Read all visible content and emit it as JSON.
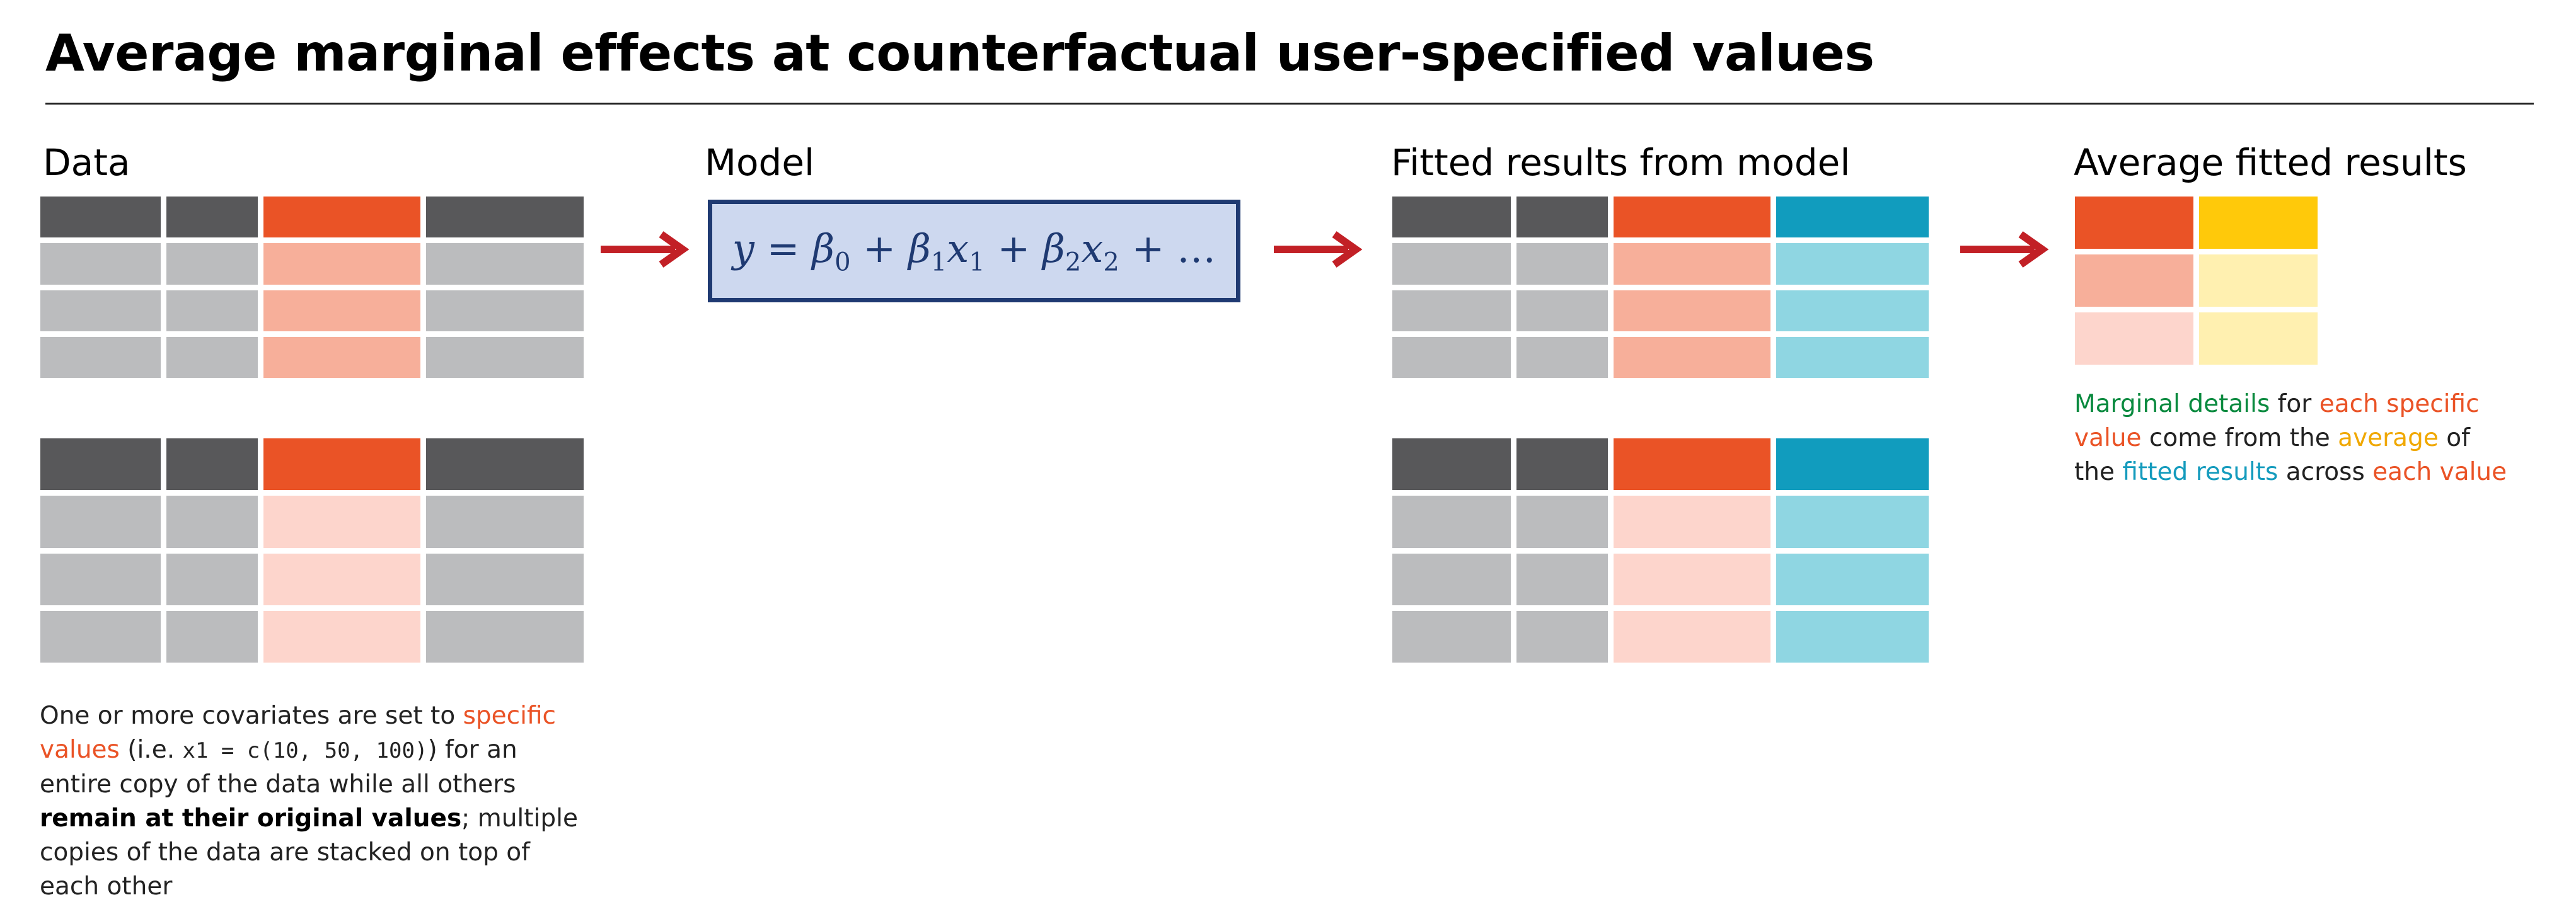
{
  "title": "Average marginal effects at counterfactual user-specified values",
  "panels": {
    "data": {
      "heading": "Data"
    },
    "model": {
      "heading": "Model",
      "equation": {
        "y": "y",
        "eq": "=",
        "b0": "β",
        "b0_sub": "0",
        "plus1": "+",
        "b1": "β",
        "b1_sub": "1",
        "x1": "x",
        "x1_sub": "1",
        "plus2": "+",
        "b2": "β",
        "b2_sub": "2",
        "x2": "x",
        "x2_sub": "2",
        "plus3": "+",
        "dots": "…"
      }
    },
    "fitted": {
      "heading": "Fitted results from model"
    },
    "average": {
      "heading": "Average fitted results"
    }
  },
  "data_note": {
    "t1": "One or more covariates are set to ",
    "t2": "specific values",
    "t3": " (i.e. ",
    "t4": "x1 = c(10, 50, 100)",
    "t5": ") for an entire copy of the data while all others ",
    "t6": "remain at their original values",
    "t7": "; multiple copies of the data are stacked on top of each other"
  },
  "average_note": {
    "t1": "Marginal details",
    "t2": " for ",
    "t3": "each specific value",
    "t4": " come from the ",
    "t5": "average",
    "t6": " of the ",
    "t7": "fitted results",
    "t8": " across ",
    "t9": "each value"
  },
  "colors": {
    "header_gray": "#58585a",
    "body_gray": "#bbbcbe",
    "orange": "#ea5326",
    "orange_mid": "#f7af9a",
    "orange_light": "#fdd5cc",
    "blue": "#119cbe",
    "blue_light": "#8fd6e2",
    "yellow": "#ffc90a",
    "yellow_light": "#fff0b0",
    "arrow_red": "#c22026",
    "model_fill": "#cdd8ef",
    "model_border": "#1f3a72"
  }
}
